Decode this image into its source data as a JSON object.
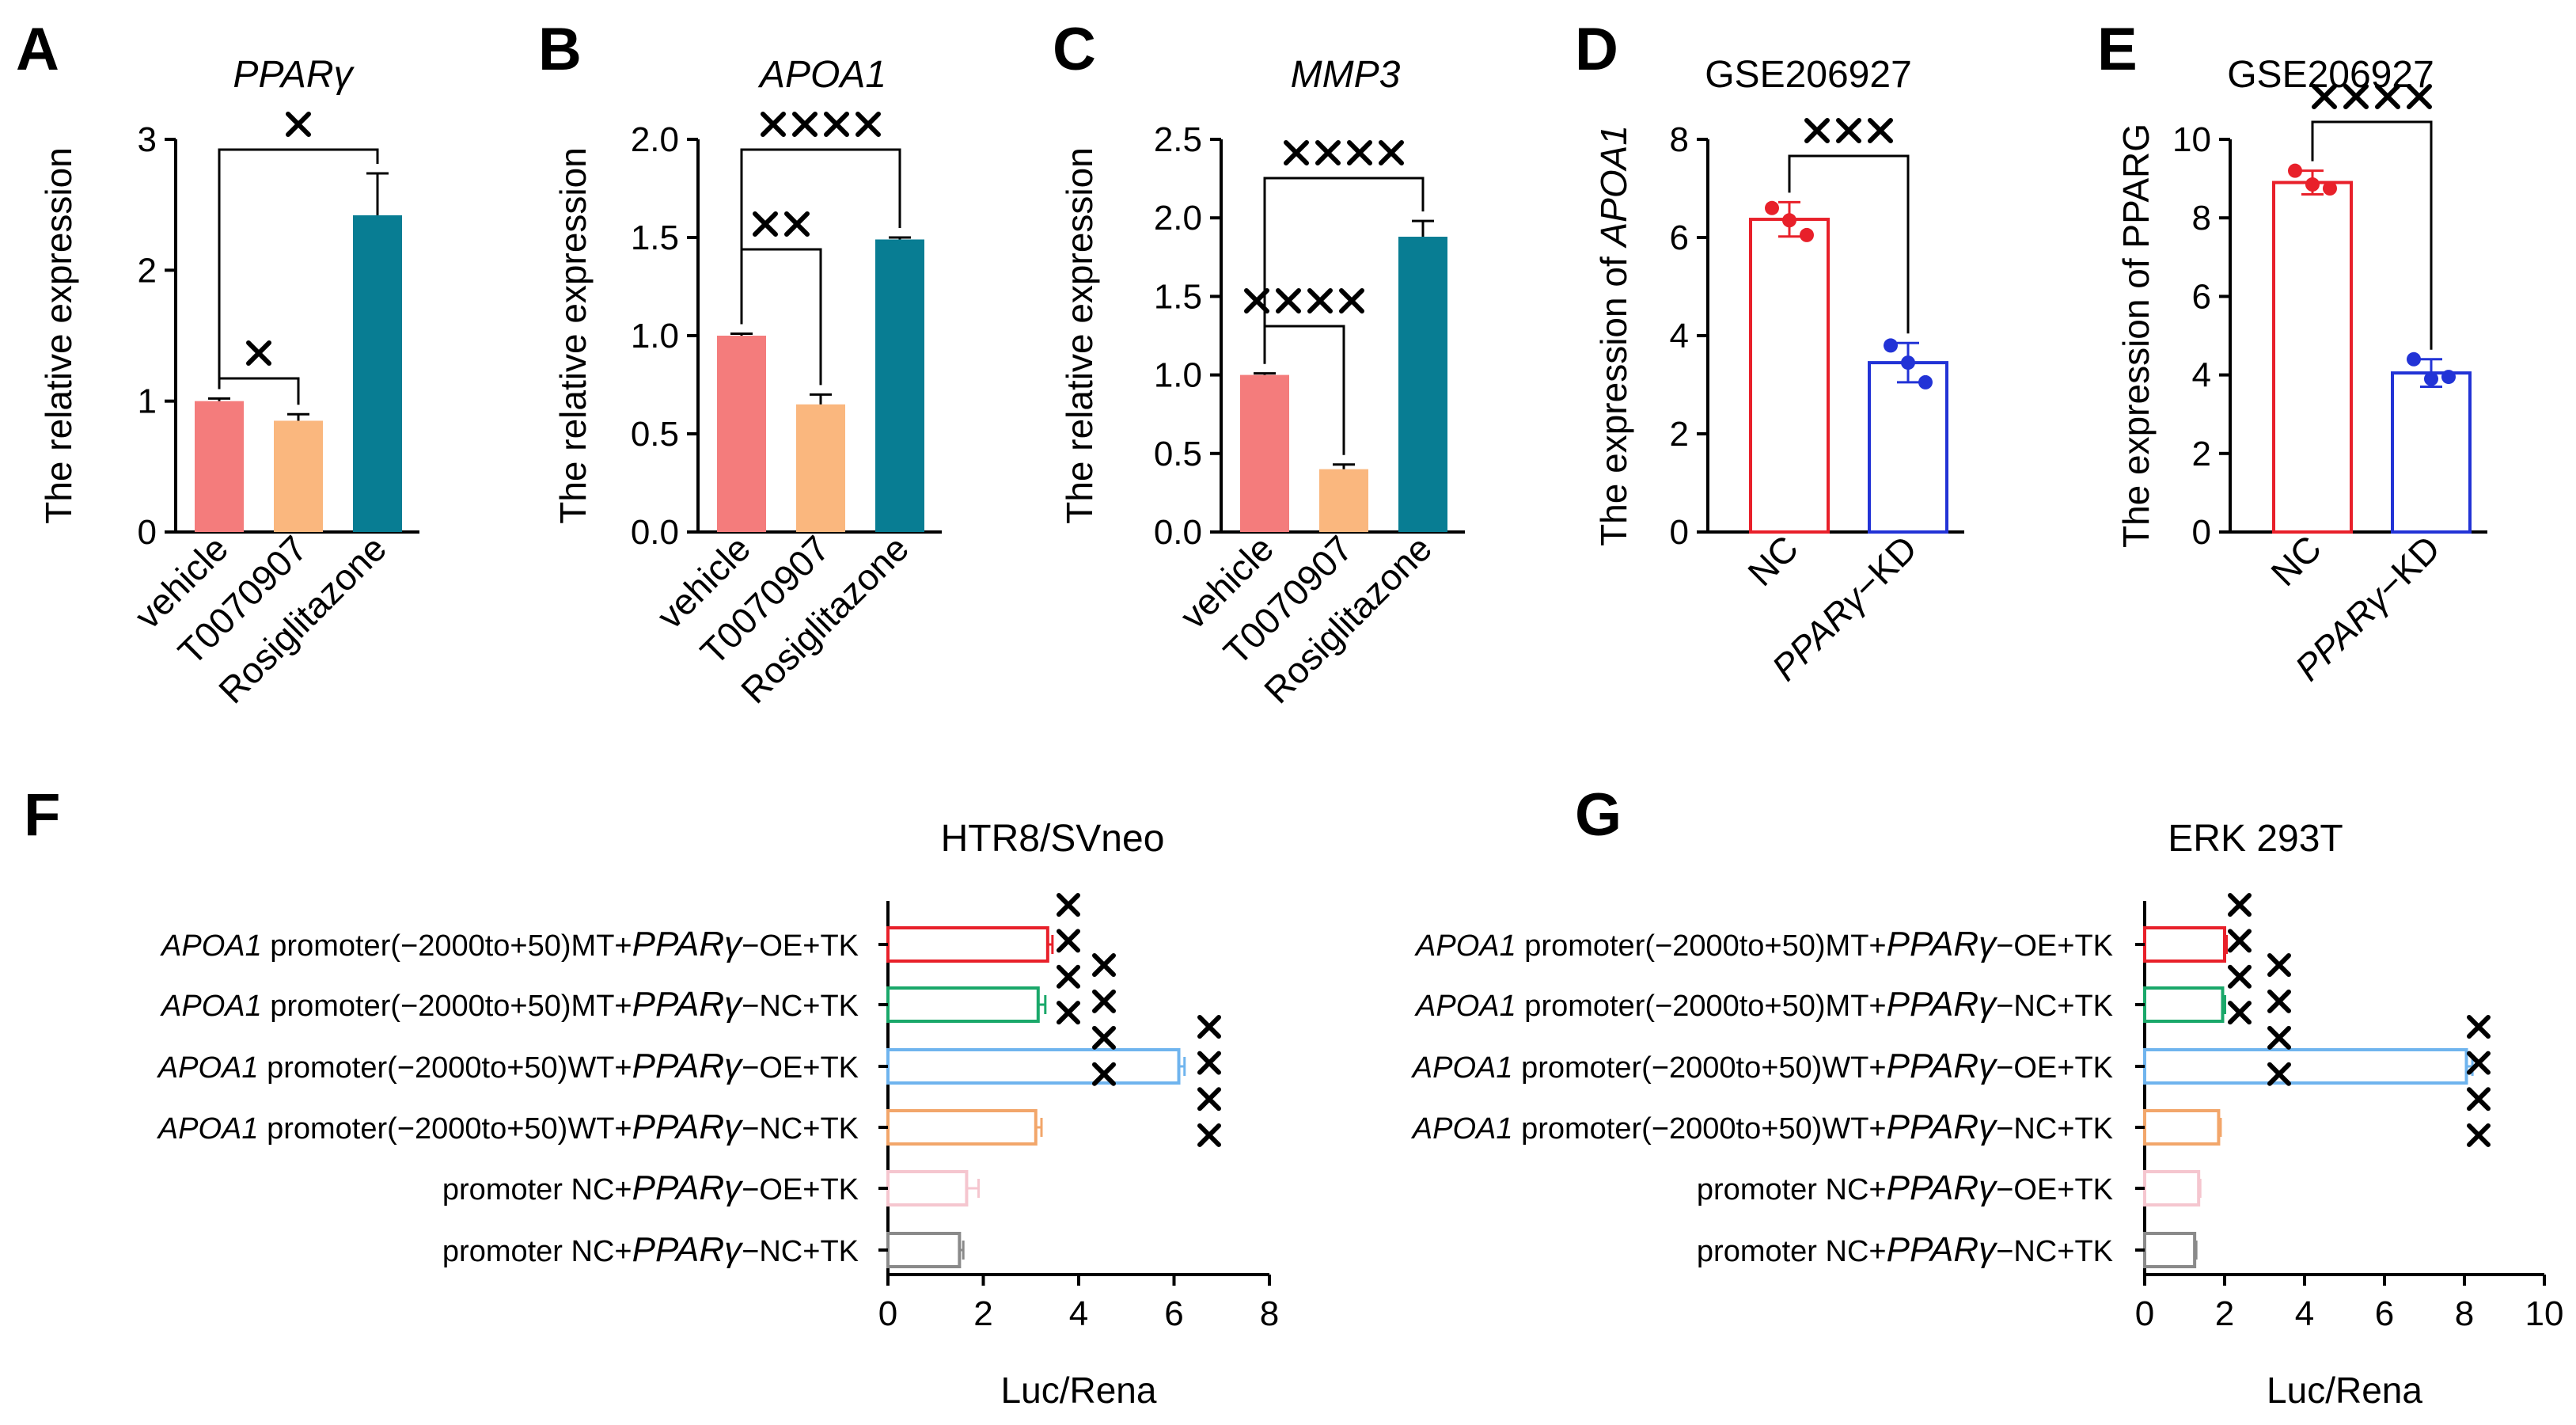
{
  "chart_data": [
    {
      "panel": "A",
      "type": "bar",
      "title": "PPARγ",
      "title_italic": true,
      "ylabel": "The relative expression",
      "categories": [
        "vehicle",
        "T0070907",
        "Rosiglitazone"
      ],
      "values": [
        1.0,
        0.85,
        2.42
      ],
      "errors": [
        0.02,
        0.05,
        0.32
      ],
      "colors": [
        "#f47c7c",
        "#fab77e",
        "#087d93"
      ],
      "ylim": [
        0,
        3
      ],
      "yticks": [
        0,
        1,
        2,
        3
      ],
      "ytick_labels": [
        "0",
        "1",
        "2",
        "3"
      ],
      "significance": [
        {
          "from": 0,
          "to": 1,
          "label": "×"
        },
        {
          "from": 0,
          "to": 2,
          "label": "×"
        }
      ]
    },
    {
      "panel": "B",
      "type": "bar",
      "title": "APOA1",
      "title_italic": true,
      "ylabel": "The relative expression",
      "categories": [
        "vehicle",
        "T0070907",
        "Rosiglitazone"
      ],
      "values": [
        1.0,
        0.65,
        1.49
      ],
      "errors": [
        0.01,
        0.05,
        0.01
      ],
      "colors": [
        "#f47c7c",
        "#fab77e",
        "#087d93"
      ],
      "ylim": [
        0,
        2
      ],
      "yticks": [
        0,
        0.5,
        1,
        1.5,
        2
      ],
      "ytick_labels": [
        "0.0",
        "0.5",
        "1.0",
        "1.5",
        "2.0"
      ],
      "significance": [
        {
          "from": 0,
          "to": 1,
          "label": "××"
        },
        {
          "from": 0,
          "to": 2,
          "label": "××××"
        }
      ]
    },
    {
      "panel": "C",
      "type": "bar",
      "title": "MMP3",
      "title_italic": true,
      "ylabel": "The relative expression",
      "categories": [
        "vehicle",
        "T0070907",
        "Rosiglitazone"
      ],
      "values": [
        1.0,
        0.4,
        1.88
      ],
      "errors": [
        0.01,
        0.03,
        0.1
      ],
      "colors": [
        "#f47c7c",
        "#fab77e",
        "#087d93"
      ],
      "ylim": [
        0,
        2.5
      ],
      "yticks": [
        0,
        0.5,
        1,
        1.5,
        2,
        2.5
      ],
      "ytick_labels": [
        "0.0",
        "0.5",
        "1.0",
        "1.5",
        "2.0",
        "2.5"
      ],
      "significance": [
        {
          "from": 0,
          "to": 1,
          "label": "××××"
        },
        {
          "from": 0,
          "to": 2,
          "label": "××××"
        }
      ]
    },
    {
      "panel": "D",
      "type": "bar",
      "title": "GSE206927",
      "ylabel": "The expression of APOA1",
      "ylabel_prefix": "The expression of ",
      "ylabel_italic": "APOA1",
      "categories": [
        "NC",
        "PPARγ−KD"
      ],
      "values": [
        6.37,
        3.45
      ],
      "errors": [
        0.35,
        0.4
      ],
      "colors": [
        "#e8202a",
        "#2233d6"
      ],
      "points": [
        [
          6.6,
          6.35,
          6.05
        ],
        [
          3.8,
          3.45,
          3.05
        ]
      ],
      "ylim": [
        0,
        8
      ],
      "yticks": [
        0,
        2,
        4,
        6,
        8
      ],
      "ytick_labels": [
        "0",
        "2",
        "4",
        "6",
        "8"
      ],
      "significance": [
        {
          "from": 0,
          "to": 1,
          "label": "×××"
        }
      ]
    },
    {
      "panel": "E",
      "type": "bar",
      "title": "GSE206927",
      "ylabel": "The expression of PPARG",
      "categories": [
        "NC",
        "PPARγ−KD"
      ],
      "values": [
        8.9,
        4.05
      ],
      "errors": [
        0.3,
        0.35
      ],
      "colors": [
        "#e8202a",
        "#2233d6"
      ],
      "points": [
        [
          9.2,
          8.85,
          8.75
        ],
        [
          4.4,
          3.9,
          3.95
        ]
      ],
      "ylim": [
        0,
        10
      ],
      "yticks": [
        0,
        2,
        4,
        6,
        8,
        10
      ],
      "ytick_labels": [
        "0",
        "2",
        "4",
        "6",
        "8",
        "10"
      ],
      "significance": [
        {
          "from": 0,
          "to": 1,
          "label": "××××"
        }
      ]
    },
    {
      "panel": "F",
      "type": "hbar",
      "title": "HTR8/SVneo",
      "xlabel": "Luc/Rena",
      "categories": [
        {
          "italic1": "APOA1",
          "mid": " promoter(−2000to+50)MT+",
          "italic2": "PPARγ",
          "tail": "−OE+TK"
        },
        {
          "italic1": "APOA1",
          "mid": " promoter(−2000to+50)MT+",
          "italic2": "PPARγ",
          "tail": "−NC+TK"
        },
        {
          "italic1": "APOA1",
          "mid": " promoter(−2000to+50)WT+",
          "italic2": "PPARγ",
          "tail": "−OE+TK"
        },
        {
          "italic1": "APOA1",
          "mid": " promoter(−2000to+50)WT+",
          "italic2": "PPARγ",
          "tail": "−NC+TK"
        },
        {
          "italic1": "",
          "mid": "promoter NC+",
          "italic2": "PPARγ",
          "tail": "−OE+TK"
        },
        {
          "italic1": "",
          "mid": "promoter NC+",
          "italic2": "PPARγ",
          "tail": "−NC+TK"
        }
      ],
      "values": [
        3.35,
        3.15,
        6.1,
        3.1,
        1.65,
        1.5
      ],
      "errors": [
        0.1,
        0.15,
        0.12,
        0.12,
        0.25,
        0.08
      ],
      "colors": [
        "#e8202a",
        "#1aa86a",
        "#6fb4ee",
        "#f2a66a",
        "#f5c6cf",
        "#8a8a8a"
      ],
      "xlim": [
        0,
        8
      ],
      "xticks": [
        0,
        2,
        4,
        6,
        8
      ],
      "xtick_labels": [
        "0",
        "2",
        "4",
        "6",
        "8"
      ],
      "significance": [
        {
          "from": 0,
          "to": 1,
          "label": "××××",
          "col": 0
        },
        {
          "from": 1,
          "to": 2,
          "label": "××××",
          "col": 1
        },
        {
          "from": 2,
          "to": 3,
          "label": "××××",
          "col": 2
        }
      ]
    },
    {
      "panel": "G",
      "type": "hbar",
      "title": "ERK 293T",
      "xlabel": "Luc/Rena",
      "categories": [
        {
          "italic1": "APOA1",
          "mid": " promoter(−2000to+50)MT+",
          "italic2": "PPARγ",
          "tail": "−OE+TK"
        },
        {
          "italic1": "APOA1",
          "mid": " promoter(−2000to+50)MT+",
          "italic2": "PPARγ",
          "tail": "−NC+TK"
        },
        {
          "italic1": "APOA1",
          "mid": " promoter(−2000to+50)WT+",
          "italic2": "PPARγ",
          "tail": "−OE+TK"
        },
        {
          "italic1": "APOA1",
          "mid": " promoter(−2000to+50)WT+",
          "italic2": "PPARγ",
          "tail": "−NC+TK"
        },
        {
          "italic1": "",
          "mid": "promoter NC+",
          "italic2": "PPARγ",
          "tail": "−OE+TK"
        },
        {
          "italic1": "",
          "mid": "promoter NC+",
          "italic2": "PPARγ",
          "tail": "−NC+TK"
        }
      ],
      "values": [
        2.0,
        1.95,
        8.05,
        1.85,
        1.35,
        1.25
      ],
      "errors": [
        0.05,
        0.06,
        0.15,
        0.05,
        0.04,
        0.04
      ],
      "colors": [
        "#e8202a",
        "#1aa86a",
        "#6fb4ee",
        "#f2a66a",
        "#f5c6cf",
        "#8a8a8a"
      ],
      "xlim": [
        0,
        10
      ],
      "xticks": [
        0,
        2,
        4,
        6,
        8,
        10
      ],
      "xtick_labels": [
        "0",
        "2",
        "4",
        "6",
        "8",
        "10"
      ],
      "significance": [
        {
          "from": 0,
          "to": 1,
          "label": "××××",
          "col": 0
        },
        {
          "from": 1,
          "to": 2,
          "label": "××××",
          "col": 1
        },
        {
          "from": 2,
          "to": 3,
          "label": "××××",
          "col": 2
        }
      ]
    }
  ]
}
